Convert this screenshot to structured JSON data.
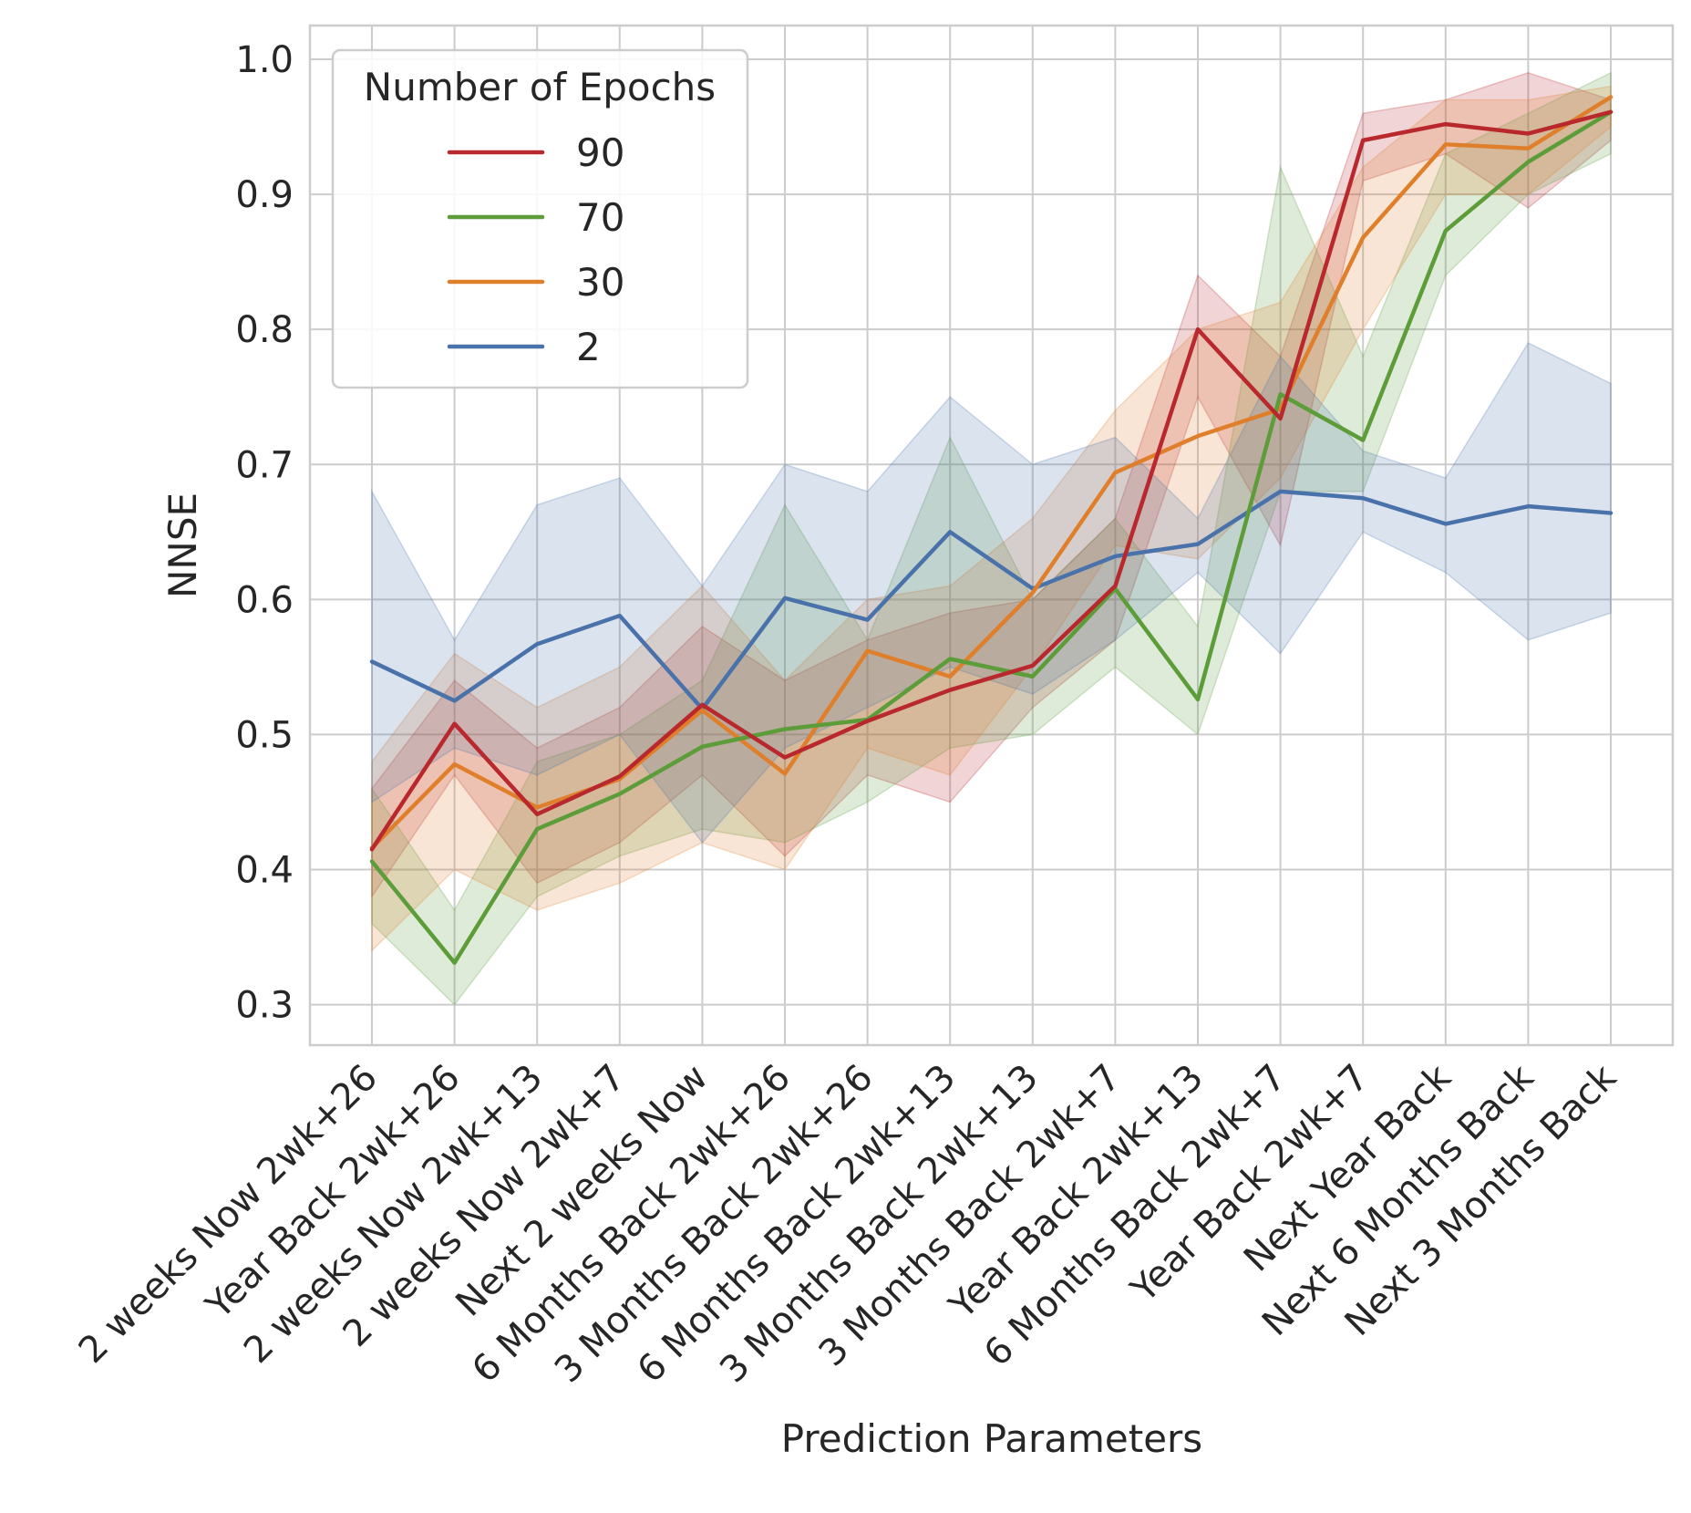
{
  "chart_data": {
    "type": "line",
    "xlabel": "Prediction Parameters",
    "ylabel": "NNSE",
    "ylim": [
      0.27,
      1.025
    ],
    "yticks": [
      "0.3",
      "0.4",
      "0.5",
      "0.6",
      "0.7",
      "0.8",
      "0.9",
      "1.0"
    ],
    "grid": true,
    "legend": {
      "title": "Number of Epochs",
      "placement": "top-left"
    },
    "categories": [
      "2 weeks Now 2wk+26",
      "Year Back 2wk+26",
      "2 weeks Now 2wk+13",
      "2 weeks Now 2wk+7",
      "Next 2 weeks Now",
      "6 Months Back 2wk+26",
      "3 Months Back 2wk+26",
      "6 Months Back 2wk+13",
      "3 Months Back 2wk+13",
      "3 Months Back 2wk+7",
      "Year Back 2wk+13",
      "6 Months Back 2wk+7",
      "Year Back 2wk+7",
      "Next Year Back",
      "Next 6 Months Back",
      "Next 3 Months Back"
    ],
    "series": [
      {
        "name": "90",
        "color": "#b8282d",
        "values": [
          0.415,
          0.508,
          0.441,
          0.469,
          0.522,
          0.483,
          0.51,
          0.533,
          0.551,
          0.61,
          0.8,
          0.734,
          0.94,
          0.952,
          0.945,
          0.961
        ],
        "lower": [
          0.38,
          0.47,
          0.39,
          0.42,
          0.47,
          0.41,
          0.47,
          0.45,
          0.52,
          0.57,
          0.75,
          0.64,
          0.91,
          0.93,
          0.89,
          0.94
        ],
        "upper": [
          0.46,
          0.54,
          0.49,
          0.52,
          0.58,
          0.54,
          0.57,
          0.59,
          0.6,
          0.66,
          0.84,
          0.78,
          0.96,
          0.97,
          0.99,
          0.97
        ]
      },
      {
        "name": "70",
        "color": "#5c9d3a",
        "values": [
          0.406,
          0.331,
          0.43,
          0.456,
          0.491,
          0.504,
          0.511,
          0.556,
          0.543,
          0.608,
          0.526,
          0.752,
          0.718,
          0.873,
          0.924,
          0.961
        ],
        "lower": [
          0.36,
          0.3,
          0.38,
          0.41,
          0.43,
          0.42,
          0.45,
          0.49,
          0.5,
          0.55,
          0.5,
          0.68,
          0.68,
          0.84,
          0.9,
          0.93
        ],
        "upper": [
          0.46,
          0.37,
          0.48,
          0.5,
          0.54,
          0.67,
          0.57,
          0.72,
          0.6,
          0.66,
          0.58,
          0.92,
          0.78,
          0.93,
          0.96,
          0.99
        ]
      },
      {
        "name": "30",
        "color": "#e07f2b",
        "values": [
          0.416,
          0.478,
          0.446,
          0.467,
          0.518,
          0.471,
          0.562,
          0.543,
          0.605,
          0.694,
          0.721,
          0.741,
          0.868,
          0.937,
          0.934,
          0.972
        ],
        "lower": [
          0.34,
          0.4,
          0.37,
          0.39,
          0.42,
          0.4,
          0.49,
          0.47,
          0.55,
          0.64,
          0.63,
          0.69,
          0.8,
          0.9,
          0.9,
          0.95
        ],
        "upper": [
          0.48,
          0.56,
          0.52,
          0.55,
          0.61,
          0.54,
          0.6,
          0.61,
          0.66,
          0.74,
          0.8,
          0.82,
          0.92,
          0.97,
          0.97,
          0.98
        ]
      },
      {
        "name": "2",
        "color": "#4a72aa",
        "values": [
          0.554,
          0.525,
          0.567,
          0.588,
          0.519,
          0.601,
          0.585,
          0.65,
          0.608,
          0.632,
          0.641,
          0.68,
          0.675,
          0.656,
          0.669,
          0.664
        ],
        "lower": [
          0.45,
          0.49,
          0.47,
          0.5,
          0.42,
          0.49,
          0.52,
          0.55,
          0.53,
          0.57,
          0.62,
          0.56,
          0.65,
          0.62,
          0.57,
          0.59
        ],
        "upper": [
          0.68,
          0.57,
          0.67,
          0.69,
          0.61,
          0.7,
          0.68,
          0.75,
          0.7,
          0.72,
          0.66,
          0.78,
          0.71,
          0.69,
          0.79,
          0.76
        ]
      }
    ]
  }
}
